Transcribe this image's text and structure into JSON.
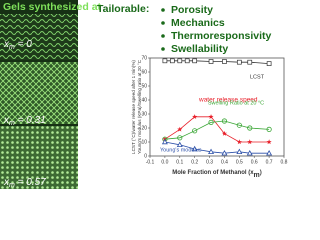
{
  "header": {
    "left": "Gels synthesized at",
    "middle": "Tailorable:",
    "bullets": [
      "Porosity",
      "Mechanics",
      "Thermoresponsivity",
      "Swellability"
    ]
  },
  "panels": [
    {
      "var": "x",
      "sub": "m",
      "text": " = 0"
    },
    {
      "var": "x",
      "sub": "m",
      "text": " = 0.31"
    },
    {
      "var": "x",
      "sub": "m",
      "text": " = 0.57"
    }
  ],
  "chart_data": {
    "type": "line",
    "x_label": {
      "text": "Mole Fraction of Methanol (",
      "var": "x",
      "sub": "m",
      "end": ")"
    },
    "y_label": [
      "LCST (°C)/water release speed after 1 min(%)",
      "Young's modulus (KPa)/Swelling ratio at 20 °C"
    ],
    "xlim": [
      -0.1,
      0.8
    ],
    "xticks": [
      -0.1,
      {
        "value": 0,
        "label": "0.0"
      },
      0.1,
      0.2,
      0.3,
      0.4,
      0.5,
      0.6,
      0.7,
      0.8
    ],
    "ylim": [
      0,
      70
    ],
    "yticks": [
      0,
      10,
      20,
      30,
      40,
      50,
      60,
      70
    ],
    "series": [
      {
        "name": "LCST",
        "color": "#333333",
        "marker": "square",
        "x": [
          0,
          0.05,
          0.1,
          0.15,
          0.2,
          0.31,
          0.4,
          0.5,
          0.57,
          0.7
        ],
        "values": [
          68,
          68,
          68,
          68,
          68,
          67.5,
          67.5,
          67,
          67,
          66
        ]
      },
      {
        "name": "water release speed",
        "color": "#e8202a",
        "marker": "star",
        "x": [
          0,
          0.1,
          0.2,
          0.31,
          0.4,
          0.5,
          0.57,
          0.7
        ],
        "values": [
          12,
          19,
          28,
          28,
          16,
          10,
          10,
          10
        ]
      },
      {
        "name": "Swelling Ratio at 20 °C",
        "color": "#3aa635",
        "marker": "circle",
        "x": [
          0,
          0.1,
          0.2,
          0.31,
          0.4,
          0.5,
          0.57,
          0.7
        ],
        "values": [
          12,
          13,
          18,
          24,
          25,
          22,
          20,
          19
        ]
      },
      {
        "name": "Young's modulus",
        "color": "#2b4fa8",
        "marker": "triangle",
        "x": [
          0,
          0.1,
          0.2,
          0.31,
          0.4,
          0.5,
          0.57,
          0.7
        ],
        "values": [
          10,
          8,
          5,
          3,
          2,
          3,
          2,
          2
        ]
      }
    ]
  }
}
